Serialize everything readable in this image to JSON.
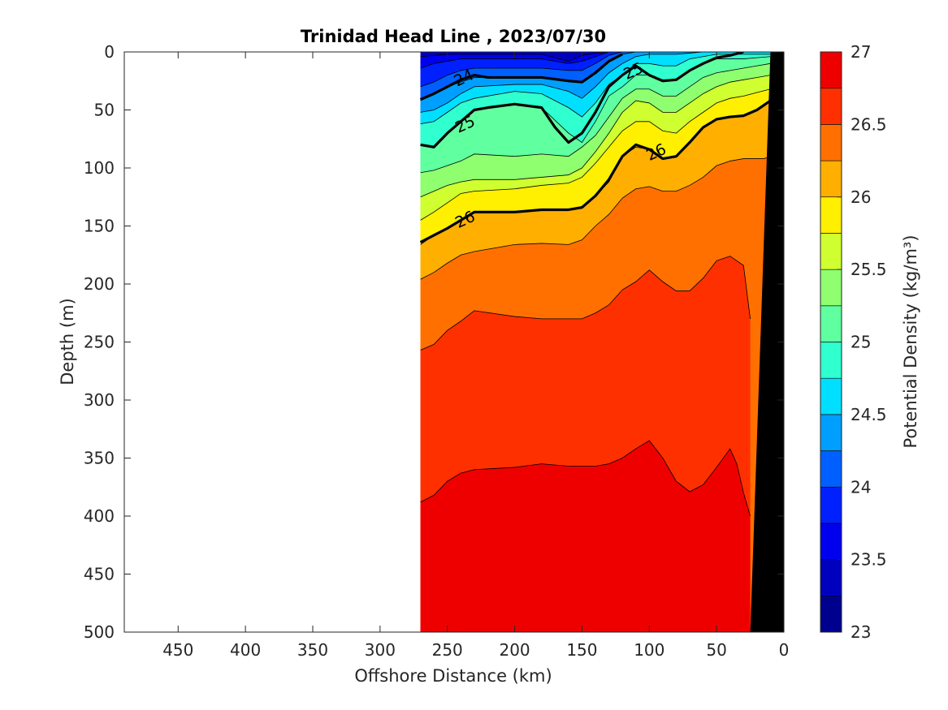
{
  "chart_data": {
    "type": "contour",
    "title": "Trinidad Head Line , 2023/07/30",
    "xlabel": "Offshore Distance (km)",
    "ylabel": "Depth (m)",
    "xlim": [
      490,
      0
    ],
    "ylim": [
      0,
      500
    ],
    "x_reversed": true,
    "y_reversed": true,
    "xticks": [
      450,
      400,
      350,
      300,
      250,
      200,
      150,
      100,
      50,
      0
    ],
    "yticks": [
      0,
      50,
      100,
      150,
      200,
      250,
      300,
      350,
      400,
      450,
      500
    ],
    "colorbar": {
      "label": "Potential Density (kg/m³)",
      "range": [
        23,
        27
      ],
      "ticks": [
        "23",
        "23.5",
        "24",
        "24.5",
        "25",
        "25.5",
        "26",
        "26.5",
        "27"
      ],
      "level_step": 0.25,
      "colors": [
        "#00008F",
        "#0000BF",
        "#0000EF",
        "#0020FF",
        "#0060FF",
        "#009FFF",
        "#00DFFF",
        "#30FFCF",
        "#60FF9F",
        "#8FFF70",
        "#CFFF30",
        "#FFEF00",
        "#FFAF00",
        "#FF7000",
        "#FF3000",
        "#EF0000",
        "#AF0000"
      ]
    },
    "section_x_range_km": [
      270,
      10
    ],
    "bathymetry": [
      [
        25,
        500
      ],
      [
        10,
        0
      ],
      [
        0,
        0
      ],
      [
        0,
        500
      ]
    ],
    "filled_layers": [
      {
        "level": 26.75,
        "x": [
          270,
          260,
          250,
          240,
          230,
          200,
          180,
          160,
          140,
          130,
          120,
          110,
          100,
          90,
          80,
          70,
          60,
          50,
          40,
          35,
          30,
          25
        ],
        "y": [
          388,
          382,
          370,
          363,
          360,
          358,
          355,
          357,
          357,
          355,
          350,
          342,
          335,
          350,
          370,
          379,
          373,
          358,
          342,
          355,
          380,
          400
        ]
      },
      {
        "level": 26.5,
        "x": [
          270,
          260,
          250,
          240,
          230,
          200,
          180,
          160,
          150,
          140,
          130,
          120,
          110,
          100,
          90,
          80,
          70,
          60,
          50,
          40,
          30,
          25
        ],
        "y": [
          257,
          252,
          240,
          232,
          223,
          228,
          230,
          230,
          230,
          225,
          218,
          205,
          198,
          188,
          198,
          206,
          206,
          195,
          180,
          176,
          184,
          230
        ]
      },
      {
        "level": 26.25,
        "x": [
          270,
          260,
          250,
          240,
          230,
          200,
          180,
          160,
          150,
          140,
          130,
          120,
          110,
          100,
          90,
          80,
          70,
          60,
          50,
          40,
          30,
          20,
          15,
          10
        ],
        "y": [
          196,
          190,
          182,
          175,
          172,
          166,
          165,
          166,
          162,
          150,
          140,
          126,
          118,
          116,
          120,
          120,
          115,
          108,
          98,
          94,
          92,
          92,
          92,
          90
        ]
      },
      {
        "level": 26.0,
        "x": [
          270,
          260,
          250,
          240,
          230,
          200,
          180,
          160,
          150,
          140,
          130,
          120,
          110,
          100,
          90,
          80,
          70,
          60,
          50,
          40,
          30,
          20,
          15,
          10
        ],
        "y": [
          166,
          158,
          152,
          145,
          138,
          138,
          136,
          136,
          134,
          124,
          112,
          90,
          82,
          84,
          92,
          90,
          78,
          65,
          58,
          56,
          55,
          50,
          45,
          42
        ]
      },
      {
        "level": 25.75,
        "x": [
          270,
          260,
          250,
          240,
          230,
          200,
          180,
          160,
          150,
          140,
          130,
          120,
          110,
          100,
          90,
          80,
          70,
          60,
          50,
          40,
          30,
          20,
          10
        ],
        "y": [
          145,
          138,
          130,
          122,
          120,
          118,
          115,
          113,
          108,
          96,
          82,
          68,
          60,
          60,
          68,
          70,
          60,
          52,
          44,
          40,
          38,
          35,
          32
        ]
      },
      {
        "level": 25.5,
        "x": [
          270,
          260,
          250,
          240,
          230,
          200,
          180,
          160,
          150,
          140,
          130,
          120,
          110,
          100,
          90,
          80,
          70,
          60,
          50,
          40,
          30,
          20,
          10
        ],
        "y": [
          125,
          120,
          115,
          112,
          110,
          110,
          108,
          106,
          100,
          86,
          70,
          52,
          42,
          44,
          52,
          52,
          44,
          36,
          30,
          26,
          24,
          22,
          20
        ]
      },
      {
        "level": 25.25,
        "x": [
          270,
          260,
          250,
          240,
          230,
          200,
          180,
          160,
          150,
          140,
          130,
          120,
          110,
          100,
          90,
          80,
          70,
          60,
          50,
          40,
          30,
          20,
          10
        ],
        "y": [
          104,
          102,
          98,
          94,
          88,
          90,
          88,
          90,
          82,
          72,
          56,
          40,
          32,
          32,
          38,
          38,
          30,
          22,
          18,
          16,
          14,
          12,
          10
        ]
      },
      {
        "level": 25.0,
        "x": [
          270,
          260,
          250,
          240,
          230,
          200,
          180,
          160,
          150,
          140,
          130,
          120,
          110,
          100,
          90,
          80,
          70,
          60,
          50,
          40,
          30,
          20,
          10
        ],
        "y": [
          80,
          82,
          70,
          60,
          50,
          45,
          48,
          70,
          78,
          60,
          38,
          30,
          20,
          20,
          24,
          24,
          16,
          10,
          6,
          6,
          6,
          5,
          4
        ]
      },
      {
        "level": 24.75,
        "x": [
          270,
          260,
          250,
          240,
          230,
          200,
          180,
          160,
          150,
          140,
          130,
          120,
          110,
          100,
          90,
          80,
          70,
          60,
          50,
          40,
          30,
          20,
          10
        ],
        "y": [
          62,
          60,
          52,
          44,
          40,
          34,
          36,
          48,
          56,
          44,
          28,
          20,
          10,
          10,
          12,
          12,
          6,
          4,
          2,
          2,
          2,
          2,
          2
        ]
      },
      {
        "level": 24.5,
        "x": [
          270,
          260,
          250,
          240,
          230,
          200,
          180,
          160,
          150,
          140,
          130,
          120,
          110,
          100,
          90,
          80,
          70,
          60,
          50,
          40,
          30,
          20,
          10
        ],
        "y": [
          52,
          50,
          44,
          36,
          30,
          28,
          28,
          34,
          40,
          30,
          18,
          10,
          4,
          2,
          2,
          2,
          1,
          0,
          0,
          0,
          0,
          0,
          0
        ]
      },
      {
        "level": 24.25,
        "x": [
          270,
          260,
          250,
          240,
          230,
          200,
          180,
          160,
          150,
          140,
          130,
          120,
          110,
          100,
          90,
          80,
          70,
          60,
          50,
          40,
          30,
          20,
          10
        ],
        "y": [
          42,
          36,
          30,
          26,
          22,
          22,
          22,
          25,
          26,
          18,
          8,
          2,
          0,
          0,
          0,
          0,
          0,
          0,
          0,
          0,
          0,
          0,
          0
        ]
      },
      {
        "level": 24.0,
        "x": [
          270,
          260,
          250,
          240,
          230,
          200,
          180,
          160,
          150,
          140,
          130,
          120,
          110,
          100,
          90,
          80,
          70,
          60,
          50,
          40,
          30,
          20,
          10
        ],
        "y": [
          30,
          26,
          20,
          16,
          14,
          14,
          14,
          16,
          16,
          10,
          3,
          0,
          0,
          0,
          0,
          0,
          0,
          0,
          0,
          0,
          0,
          0,
          0
        ]
      },
      {
        "level": 23.75,
        "x": [
          270,
          260,
          250,
          240,
          230,
          200,
          180,
          160,
          150,
          140,
          130,
          120,
          110,
          100,
          90,
          80,
          70,
          60,
          50,
          40,
          30,
          20,
          10
        ],
        "y": [
          14,
          10,
          8,
          6,
          6,
          6,
          6,
          10,
          8,
          4,
          0,
          0,
          0,
          0,
          0,
          0,
          0,
          0,
          0,
          0,
          0,
          0,
          0
        ]
      },
      {
        "level": 23.5,
        "x": [
          270,
          260,
          250,
          240,
          230,
          200,
          180,
          160,
          150,
          140,
          130,
          120,
          110,
          100,
          90,
          80,
          70,
          60,
          50,
          40,
          30,
          20,
          10
        ],
        "y": [
          4,
          3,
          2,
          2,
          2,
          2,
          2,
          8,
          3,
          1,
          0,
          0,
          0,
          0,
          0,
          0,
          0,
          0,
          0,
          0,
          0,
          0,
          0
        ]
      }
    ],
    "labeled_contours": [
      {
        "level": 24,
        "label": "24",
        "x": [
          270,
          260,
          250,
          240,
          230,
          220,
          200,
          180,
          160,
          150,
          140,
          130,
          120
        ],
        "y": [
          41,
          36,
          30,
          24,
          20,
          22,
          22,
          22,
          25,
          26,
          18,
          8,
          2
        ]
      },
      {
        "level": 25,
        "label": "25",
        "x": [
          270,
          260,
          250,
          240,
          230,
          220,
          200,
          180,
          170,
          160,
          150,
          140,
          130,
          120,
          110,
          100,
          90,
          80,
          70,
          60,
          50,
          40,
          30
        ],
        "y": [
          80,
          82,
          70,
          60,
          50,
          48,
          45,
          48,
          65,
          78,
          70,
          52,
          30,
          20,
          12,
          20,
          25,
          24,
          16,
          10,
          5,
          3,
          0
        ]
      },
      {
        "level": 26,
        "label": "26",
        "x": [
          270,
          260,
          250,
          240,
          230,
          220,
          200,
          180,
          160,
          150,
          140,
          130,
          120,
          110,
          100,
          90,
          80,
          70,
          60,
          50,
          40,
          30,
          20,
          10
        ],
        "y": [
          164,
          158,
          152,
          145,
          138,
          138,
          138,
          136,
          136,
          134,
          124,
          110,
          90,
          80,
          84,
          92,
          90,
          78,
          65,
          58,
          56,
          55,
          50,
          42
        ]
      }
    ],
    "contour_label_positions": [
      {
        "label": "24",
        "x": 238,
        "y": 22
      },
      {
        "label": "25",
        "x": 237,
        "y": 62
      },
      {
        "label": "25",
        "x": 112,
        "y": 16
      },
      {
        "label": "26",
        "x": 237,
        "y": 144
      },
      {
        "label": "26",
        "x": 95,
        "y": 86
      }
    ]
  }
}
